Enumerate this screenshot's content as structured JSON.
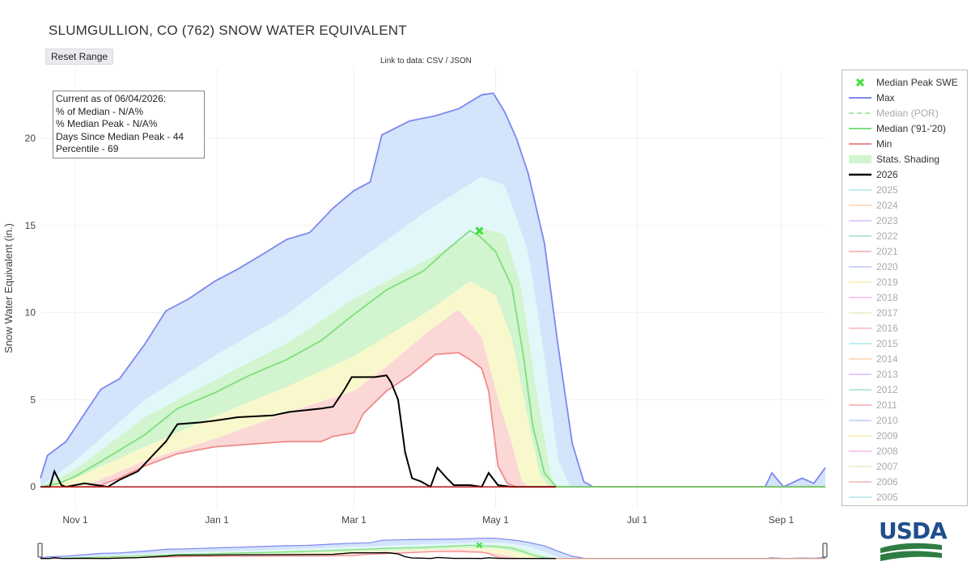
{
  "title": "SLUMGULLION, CO (762) SNOW WATER EQUIVALENT",
  "reset_label": "Reset Range",
  "data_link": "Link to data: CSV / JSON",
  "info": {
    "line1": "Current as of 06/04/2026:",
    "line2": "% of Median - N/A%",
    "line3": "% Median Peak - N/A%",
    "line4": "Days Since Median Peak - 44",
    "line5": "Percentile - 69"
  },
  "logo_text": "USDA",
  "colors": {
    "max": "#7e87ee",
    "median_por": "#aee3b0",
    "median_9120": "#7ce07c",
    "min": "#f08a8a",
    "current": "#000000",
    "peak_marker": "#3ee03e",
    "shade_blue": "#d3e4fb",
    "shade_cyan": "#e2f7f9",
    "shade_green": "#d2f4cf",
    "shade_yellow": "#f9f8cd",
    "shade_red": "#fbd8d6"
  },
  "legend": [
    {
      "label": "Median Peak SWE",
      "symbol": "x",
      "color": "#3ee03e",
      "dim": false
    },
    {
      "label": "Max",
      "symbol": "line",
      "color": "#7e87ee",
      "dim": false
    },
    {
      "label": "Median (POR)",
      "symbol": "dash",
      "color": "#aee3b0",
      "dim": true
    },
    {
      "label": "Median ('91-'20)",
      "symbol": "line",
      "color": "#7ce07c",
      "dim": false
    },
    {
      "label": "Min",
      "symbol": "line",
      "color": "#f08a8a",
      "dim": false
    },
    {
      "label": "Stats. Shading",
      "symbol": "box",
      "color": "#d2f4cf",
      "dim": false
    },
    {
      "label": "2026",
      "symbol": "bold",
      "color": "#000000",
      "dim": false
    },
    {
      "label": "2025",
      "symbol": "line",
      "color": "#8fe0e6",
      "dim": true
    },
    {
      "label": "2024",
      "symbol": "line",
      "color": "#f6c48f",
      "dim": true
    },
    {
      "label": "2023",
      "symbol": "line",
      "color": "#c9a9ef",
      "dim": true
    },
    {
      "label": "2022",
      "symbol": "line",
      "color": "#7fd6ad",
      "dim": true
    },
    {
      "label": "2021",
      "symbol": "line",
      "color": "#f08a8a",
      "dim": true
    },
    {
      "label": "2020",
      "symbol": "line",
      "color": "#a8b3f3",
      "dim": true
    },
    {
      "label": "2019",
      "symbol": "line",
      "color": "#f6e28a",
      "dim": true
    },
    {
      "label": "2018",
      "symbol": "line",
      "color": "#f3a6e8",
      "dim": true
    },
    {
      "label": "2017",
      "symbol": "line",
      "color": "#d8e7b0",
      "dim": true
    },
    {
      "label": "2016",
      "symbol": "line",
      "color": "#f29aa0",
      "dim": true
    },
    {
      "label": "2015",
      "symbol": "line",
      "color": "#8fe0e6",
      "dim": true
    },
    {
      "label": "2014",
      "symbol": "line",
      "color": "#f6c48f",
      "dim": true
    },
    {
      "label": "2013",
      "symbol": "line",
      "color": "#c9a9ef",
      "dim": true
    },
    {
      "label": "2012",
      "symbol": "line",
      "color": "#7fd6ad",
      "dim": true
    },
    {
      "label": "2011",
      "symbol": "line",
      "color": "#f08a8a",
      "dim": true
    },
    {
      "label": "2010",
      "symbol": "line",
      "color": "#a8b3f3",
      "dim": true
    },
    {
      "label": "2009",
      "symbol": "line",
      "color": "#f6e28a",
      "dim": true
    },
    {
      "label": "2008",
      "symbol": "line",
      "color": "#f3a6e8",
      "dim": true
    },
    {
      "label": "2007",
      "symbol": "line",
      "color": "#d8e7b0",
      "dim": true
    },
    {
      "label": "2006",
      "symbol": "line",
      "color": "#f29aa0",
      "dim": true
    },
    {
      "label": "2005",
      "symbol": "line",
      "color": "#8fe0e6",
      "dim": true
    }
  ],
  "chart_data": {
    "type": "area",
    "title": "SLUMGULLION, CO (762) SNOW WATER EQUIVALENT",
    "ylabel": "Snow Water Equivalent (in.)",
    "xlabel": "",
    "x_range": [
      "10-17",
      "09-20"
    ],
    "ylim": [
      -1.2,
      24
    ],
    "grid": true,
    "legend_placement": "right",
    "x_ticks": [
      {
        "date": "11-01",
        "label": "Nov 1"
      },
      {
        "date": "01-01",
        "label": "Jan 1"
      },
      {
        "date": "03-01",
        "label": "Mar 1"
      },
      {
        "date": "05-01",
        "label": "May 1"
      },
      {
        "date": "07-01",
        "label": "Jul 1"
      },
      {
        "date": "09-01",
        "label": "Sep 1"
      }
    ],
    "y_ticks": [
      0,
      5,
      10,
      15,
      20
    ],
    "median_peak": {
      "date": "04-24",
      "value": 14.7
    },
    "series": [
      {
        "name": "Max",
        "points": [
          [
            "10-17",
            0.5
          ],
          [
            "10-20",
            1.8
          ],
          [
            "10-28",
            2.6
          ],
          [
            "11-05",
            4.2
          ],
          [
            "11-12",
            5.6
          ],
          [
            "11-20",
            6.2
          ],
          [
            "12-01",
            8.2
          ],
          [
            "12-10",
            10.1
          ],
          [
            "12-20",
            10.8
          ],
          [
            "12-31",
            11.8
          ],
          [
            "01-10",
            12.5
          ],
          [
            "01-20",
            13.3
          ],
          [
            "01-31",
            14.2
          ],
          [
            "02-10",
            14.6
          ],
          [
            "02-20",
            16.0
          ],
          [
            "03-01",
            17.0
          ],
          [
            "03-08",
            17.5
          ],
          [
            "03-13",
            20.2
          ],
          [
            "03-25",
            21.0
          ],
          [
            "04-05",
            21.3
          ],
          [
            "04-15",
            21.7
          ],
          [
            "04-25",
            22.5
          ],
          [
            "04-30",
            22.6
          ],
          [
            "05-05",
            21.5
          ],
          [
            "05-10",
            20.0
          ],
          [
            "05-15",
            18.0
          ],
          [
            "05-18",
            16.3
          ],
          [
            "05-22",
            14.0
          ],
          [
            "05-28",
            8.0
          ],
          [
            "06-03",
            2.5
          ],
          [
            "06-08",
            0.3
          ],
          [
            "06-12",
            0
          ],
          [
            "08-25",
            0
          ],
          [
            "08-28",
            0.8
          ],
          [
            "09-02",
            0
          ],
          [
            "09-10",
            0.5
          ],
          [
            "09-15",
            0.2
          ],
          [
            "09-20",
            1.1
          ]
        ]
      },
      {
        "name": "Median ('91-'20)",
        "points": [
          [
            "10-17",
            0
          ],
          [
            "10-25",
            0.2
          ],
          [
            "11-01",
            0.6
          ],
          [
            "11-10",
            1.3
          ],
          [
            "11-20",
            2.1
          ],
          [
            "12-01",
            3.0
          ],
          [
            "12-15",
            4.5
          ],
          [
            "12-31",
            5.4
          ],
          [
            "01-15",
            6.4
          ],
          [
            "01-31",
            7.3
          ],
          [
            "02-15",
            8.4
          ],
          [
            "03-01",
            9.9
          ],
          [
            "03-15",
            11.3
          ],
          [
            "03-31",
            12.4
          ],
          [
            "04-10",
            13.6
          ],
          [
            "04-20",
            14.7
          ],
          [
            "04-24",
            14.4
          ],
          [
            "05-01",
            13.5
          ],
          [
            "05-08",
            11.5
          ],
          [
            "05-13",
            7.5
          ],
          [
            "05-17",
            3.5
          ],
          [
            "05-22",
            0.8
          ],
          [
            "05-27",
            0
          ],
          [
            "09-20",
            0
          ]
        ]
      },
      {
        "name": "Min",
        "points": [
          [
            "10-17",
            0
          ],
          [
            "11-10",
            0
          ],
          [
            "11-20",
            0.5
          ],
          [
            "12-01",
            1.2
          ],
          [
            "12-15",
            1.9
          ],
          [
            "12-31",
            2.3
          ],
          [
            "01-31",
            2.6
          ],
          [
            "02-15",
            2.6
          ],
          [
            "02-20",
            2.9
          ],
          [
            "03-01",
            3.1
          ],
          [
            "03-05",
            4.2
          ],
          [
            "03-15",
            5.5
          ],
          [
            "03-25",
            6.4
          ],
          [
            "04-05",
            7.6
          ],
          [
            "04-15",
            7.7
          ],
          [
            "04-20",
            7.3
          ],
          [
            "04-25",
            6.8
          ],
          [
            "04-28",
            5.5
          ],
          [
            "05-02",
            1.2
          ],
          [
            "05-06",
            0.2
          ],
          [
            "05-10",
            0
          ],
          [
            "09-20",
            0
          ]
        ]
      },
      {
        "name": "2026",
        "points": [
          [
            "10-17",
            0
          ],
          [
            "10-21",
            0
          ],
          [
            "10-23",
            0.9
          ],
          [
            "10-26",
            0.1
          ],
          [
            "10-28",
            0
          ],
          [
            "11-05",
            0.2
          ],
          [
            "11-15",
            0
          ],
          [
            "11-20",
            0.4
          ],
          [
            "11-28",
            0.9
          ],
          [
            "12-05",
            1.9
          ],
          [
            "12-10",
            2.6
          ],
          [
            "12-15",
            3.6
          ],
          [
            "12-25",
            3.7
          ],
          [
            "12-31",
            3.8
          ],
          [
            "01-10",
            4.0
          ],
          [
            "01-25",
            4.1
          ],
          [
            "02-01",
            4.3
          ],
          [
            "02-15",
            4.5
          ],
          [
            "02-20",
            4.6
          ],
          [
            "02-25",
            5.6
          ],
          [
            "02-28",
            6.3
          ],
          [
            "03-10",
            6.3
          ],
          [
            "03-15",
            6.4
          ],
          [
            "03-17",
            6.0
          ],
          [
            "03-20",
            5.0
          ],
          [
            "03-23",
            2.0
          ],
          [
            "03-26",
            0.5
          ],
          [
            "03-30",
            0.3
          ],
          [
            "04-03",
            0
          ],
          [
            "04-06",
            1.1
          ],
          [
            "04-10",
            0.5
          ],
          [
            "04-13",
            0.1
          ],
          [
            "04-20",
            0.1
          ],
          [
            "04-25",
            0
          ],
          [
            "04-28",
            0.8
          ],
          [
            "05-02",
            0.1
          ],
          [
            "05-08",
            0
          ],
          [
            "05-27",
            0
          ]
        ]
      },
      {
        "name": "Stats. Shading",
        "points": []
      }
    ],
    "bands": [
      {
        "name": "90-max",
        "color": "#d3e4fb",
        "lower": [
          [
            "10-17",
            0
          ],
          [
            "11-01",
            1.5
          ],
          [
            "12-01",
            5.0
          ],
          [
            "01-01",
            7.6
          ],
          [
            "02-01",
            10.0
          ],
          [
            "03-01",
            12.8
          ],
          [
            "04-01",
            15.8
          ],
          [
            "04-25",
            17.8
          ],
          [
            "05-05",
            17.3
          ],
          [
            "05-15",
            13.5
          ],
          [
            "05-22",
            7.5
          ],
          [
            "05-28",
            1.5
          ],
          [
            "06-02",
            0
          ],
          [
            "09-20",
            0
          ]
        ]
      },
      {
        "name": "70-90",
        "color": "#e2f7f9",
        "lower": [
          [
            "10-17",
            0
          ],
          [
            "11-01",
            1.0
          ],
          [
            "12-01",
            4.0
          ],
          [
            "01-01",
            6.2
          ],
          [
            "02-01",
            8.3
          ],
          [
            "03-01",
            10.8
          ],
          [
            "04-01",
            13.0
          ],
          [
            "04-25",
            14.8
          ],
          [
            "05-05",
            14.5
          ],
          [
            "05-12",
            11.5
          ],
          [
            "05-18",
            6.0
          ],
          [
            "05-25",
            0.5
          ],
          [
            "05-28",
            0
          ],
          [
            "09-20",
            0
          ]
        ]
      },
      {
        "name": "50-70",
        "color": "#d2f4cf",
        "lower": [
          [
            "10-17",
            0
          ],
          [
            "11-01",
            0.5
          ],
          [
            "12-01",
            2.3
          ],
          [
            "01-01",
            4.1
          ],
          [
            "02-01",
            5.8
          ],
          [
            "03-01",
            7.5
          ],
          [
            "04-01",
            10.0
          ],
          [
            "04-20",
            11.8
          ],
          [
            "05-01",
            11.0
          ],
          [
            "05-08",
            8.5
          ],
          [
            "05-14",
            4.5
          ],
          [
            "05-20",
            0.7
          ],
          [
            "05-24",
            0
          ],
          [
            "09-20",
            0
          ]
        ]
      },
      {
        "name": "30-50",
        "color": "#f9f8cd",
        "lower": [
          [
            "10-17",
            0
          ],
          [
            "11-05",
            0
          ],
          [
            "11-15",
            0.6
          ],
          [
            "12-01",
            1.5
          ],
          [
            "01-01",
            2.8
          ],
          [
            "02-01",
            4.3
          ],
          [
            "03-01",
            5.5
          ],
          [
            "03-15",
            6.9
          ],
          [
            "04-01",
            8.8
          ],
          [
            "04-15",
            10.2
          ],
          [
            "04-25",
            8.6
          ],
          [
            "05-03",
            4.6
          ],
          [
            "05-08",
            2.5
          ],
          [
            "05-12",
            0.4
          ],
          [
            "05-15",
            0
          ],
          [
            "09-20",
            0
          ]
        ]
      },
      {
        "name": "min-30",
        "color": "#fbd8d6",
        "lower": []
      }
    ]
  },
  "navigator": {
    "left_handle": "range-start",
    "right_handle": "range-end"
  }
}
